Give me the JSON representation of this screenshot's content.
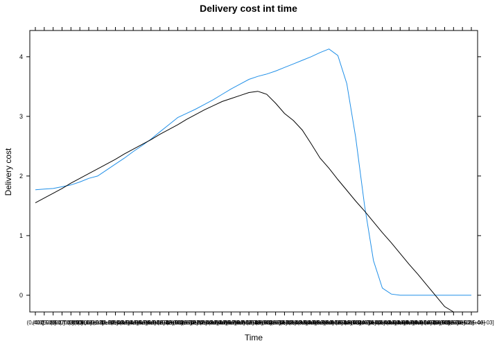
{
  "chart_data": {
    "type": "line",
    "title": "Delivery cost int time",
    "xlabel": "Time",
    "ylabel": "Delivery cost",
    "ylim": [
      -0.28,
      4.44
    ],
    "yticks": [
      0,
      1,
      2,
      3,
      4
    ],
    "grid": false,
    "legend": "none",
    "x_count": 50,
    "x_tick_labels": [
      "(0,400]",
      "(400,500]",
      "(500,600]",
      "(600,700]",
      "(700,800]",
      "(800,900]",
      "(900,1e+03]",
      "(1e+03,1.1e+03]",
      "(1.1e+03,1.2e+03]",
      "(1.2e+03,1.3e+03]",
      "(1.3e+03,1.4e+03]",
      "(1.4e+03,1.5e+03]",
      "(1.5e+03,1.6e+03]",
      "(1.6e+03,1.7e+03]",
      "(1.7e+03,1.8e+03]",
      "(1.8e+03,1.9e+03]",
      "(1.9e+03,2e+03]",
      "(2e+03,2.1e+03]",
      "(2.1e+03,2.2e+03]",
      "(2.2e+03,2.3e+03]",
      "(2.3e+03,2.4e+03]",
      "(2.4e+03,2.5e+03]",
      "(2.5e+03,2.6e+03]",
      "(2.6e+03,2.7e+03]",
      "(2.7e+03,2.8e+03]",
      "(2.8e+03,2.9e+03]",
      "(2.9e+03,3e+03]",
      "(3e+03,3.1e+03]",
      "(3.1e+03,3.2e+03]",
      "(3.2e+03,3.3e+03]",
      "(3.3e+03,3.4e+03]",
      "(3.4e+03,3.5e+03]",
      "(3.5e+03,3.6e+03]",
      "(3.6e+03,3.7e+03]",
      "(3.7e+03,3.8e+03]",
      "(3.8e+03,3.9e+03]",
      "(3.9e+03,4e+03]",
      "(4e+03,4.1e+03]",
      "(4.1e+03,4.2e+03]",
      "(4.2e+03,4.3e+03]",
      "(4.3e+03,4.4e+03]",
      "(4.4e+03,4.5e+03]",
      "(4.5e+03,4.6e+03]",
      "(4.6e+03,4.7e+03]",
      "(4.7e+03,4.8e+03]",
      "(4.8e+03,4.9e+03]",
      "(4.9e+03,5e+03]",
      "(5e+03,5.1e+03]",
      "(5.1e+03,5.2e+03]",
      "(5.2e+03,5.4e+03]"
    ],
    "series": [
      {
        "color": "#1f8fe8",
        "values": [
          1.77,
          1.78,
          1.79,
          1.82,
          1.85,
          1.9,
          1.96,
          2.0,
          2.1,
          2.2,
          2.3,
          2.41,
          2.51,
          2.62,
          2.74,
          2.86,
          2.98,
          3.05,
          3.12,
          3.2,
          3.28,
          3.37,
          3.46,
          3.54,
          3.62,
          3.67,
          3.71,
          3.76,
          3.82,
          3.88,
          3.94,
          4.0,
          4.07,
          4.13,
          4.02,
          3.55,
          2.65,
          1.5,
          0.58,
          0.12,
          0.02,
          0.0,
          0.0,
          0.0,
          0.0,
          0.0,
          0.0,
          0.0,
          0.0,
          0.0
        ]
      },
      {
        "color": "#000000",
        "values": [
          1.55,
          1.63,
          1.71,
          1.79,
          1.88,
          1.96,
          2.04,
          2.12,
          2.2,
          2.28,
          2.37,
          2.45,
          2.53,
          2.61,
          2.7,
          2.78,
          2.86,
          2.95,
          3.03,
          3.11,
          3.18,
          3.25,
          3.3,
          3.35,
          3.4,
          3.42,
          3.37,
          3.22,
          3.05,
          2.93,
          2.77,
          2.54,
          2.3,
          2.13,
          1.94,
          1.76,
          1.58,
          1.41,
          1.23,
          1.05,
          0.88,
          0.7,
          0.52,
          0.35,
          0.17,
          -0.01,
          -0.19,
          -0.28,
          null,
          null
        ]
      }
    ]
  }
}
